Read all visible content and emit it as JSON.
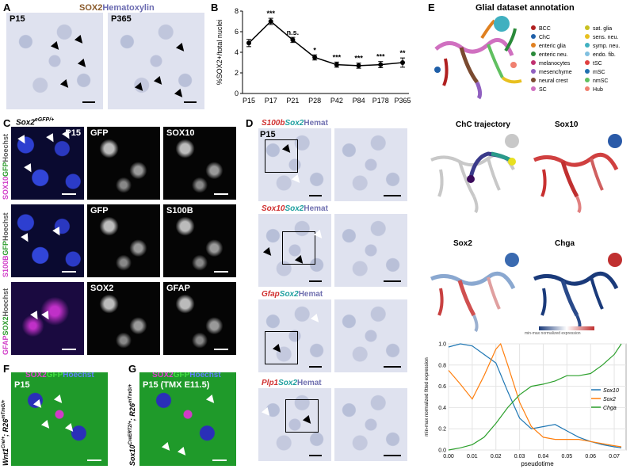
{
  "panelA": {
    "label": "A",
    "stain_sox2": "SOX2",
    "stain_hema": "Hematoxylin",
    "left_age": "P15",
    "right_age": "P365"
  },
  "panelB": {
    "label": "B",
    "ylabel": "%SOX2+/total nuclei",
    "sig": [
      "",
      "***",
      "n.s.",
      "*",
      "***",
      "***",
      "***",
      "**"
    ]
  },
  "chart_data": [
    {
      "type": "line",
      "title": "",
      "xlabel": "",
      "ylabel": "%SOX2+/total nuclei",
      "categories": [
        "P15",
        "P17",
        "P21",
        "P28",
        "P42",
        "P84",
        "P178",
        "P365"
      ],
      "values": [
        4.9,
        7.0,
        5.2,
        3.5,
        2.8,
        2.7,
        2.8,
        3.0
      ],
      "errors": [
        0.35,
        0.3,
        0.25,
        0.25,
        0.25,
        0.25,
        0.3,
        0.45
      ],
      "ylim": [
        0,
        8
      ],
      "yticks": [
        0,
        2,
        4,
        6,
        8
      ]
    },
    {
      "type": "line",
      "title": "",
      "xlabel": "pseudotime",
      "ylabel": "min-max normalized fitted expression",
      "xlim": [
        0,
        0.075
      ],
      "ylim": [
        0,
        1
      ],
      "xticks": [
        "0.00",
        "0.01",
        "0.02",
        "0.03",
        "0.04",
        "0.05",
        "0.06",
        "0.07"
      ],
      "yticks": [
        "0.0",
        "0.2",
        "0.4",
        "0.6",
        "0.8",
        "1.0"
      ],
      "legend_position": "right",
      "series": [
        {
          "name": "Sox10",
          "color": "#1f77b4",
          "x": [
            0.0,
            0.005,
            0.01,
            0.015,
            0.02,
            0.025,
            0.03,
            0.035,
            0.04,
            0.045,
            0.05,
            0.055,
            0.06,
            0.065,
            0.07,
            0.073
          ],
          "y": [
            0.97,
            1.0,
            0.98,
            0.9,
            0.82,
            0.55,
            0.3,
            0.2,
            0.22,
            0.24,
            0.18,
            0.12,
            0.08,
            0.05,
            0.03,
            0.02
          ]
        },
        {
          "name": "Sox2",
          "color": "#ff7f0e",
          "x": [
            0.0,
            0.005,
            0.01,
            0.015,
            0.02,
            0.022,
            0.025,
            0.03,
            0.035,
            0.04,
            0.045,
            0.05,
            0.055,
            0.06,
            0.065,
            0.07,
            0.073
          ],
          "y": [
            0.75,
            0.62,
            0.48,
            0.7,
            0.95,
            1.0,
            0.8,
            0.45,
            0.22,
            0.12,
            0.1,
            0.1,
            0.1,
            0.08,
            0.06,
            0.04,
            0.03
          ]
        },
        {
          "name": "Chga",
          "color": "#2ca02c",
          "x": [
            0.0,
            0.005,
            0.01,
            0.015,
            0.02,
            0.025,
            0.03,
            0.035,
            0.04,
            0.045,
            0.05,
            0.055,
            0.06,
            0.065,
            0.07,
            0.073
          ],
          "y": [
            0.0,
            0.02,
            0.05,
            0.12,
            0.25,
            0.4,
            0.52,
            0.6,
            0.62,
            0.65,
            0.7,
            0.7,
            0.72,
            0.8,
            0.9,
            1.0
          ]
        }
      ]
    }
  ],
  "panelC": {
    "label": "C",
    "genotype": "Sox2",
    "genotype_sup": "eGFP/+",
    "age": "P15",
    "rows": [
      {
        "merge_a": "SOX10",
        "merge_b": "GFP",
        "merge_c": "Hoechst",
        "ch1": "GFP",
        "ch2": "SOX10"
      },
      {
        "merge_a": "S100B",
        "merge_b": "GFP",
        "merge_c": "Hoechst",
        "ch1": "GFP",
        "ch2": "S100B"
      },
      {
        "merge_a": "GFAP",
        "merge_b": "SOX2",
        "merge_c": "Hoechst",
        "ch1": "SOX2",
        "ch2": "GFAP"
      }
    ]
  },
  "panelD": {
    "label": "D",
    "age": "P15",
    "rows": [
      {
        "gene": "S100b",
        "sox2": "Sox2",
        "hemat": "Hemat"
      },
      {
        "gene": "Sox10",
        "sox2": "Sox2",
        "hemat": "Hemat"
      },
      {
        "gene": "Gfap",
        "sox2": "Sox2",
        "hemat": "Hemat"
      },
      {
        "gene": "Plp1",
        "sox2": "Sox2",
        "hemat": "Hemat"
      }
    ]
  },
  "panelE": {
    "label": "E",
    "title": "Glial dataset annotation",
    "legend_left": [
      {
        "name": "BCC",
        "color": "#b02020"
      },
      {
        "name": "ChC",
        "color": "#1f5fa8"
      },
      {
        "name": "enteric glia",
        "color": "#e08020"
      },
      {
        "name": "enteric neu.",
        "color": "#2a8a3a"
      },
      {
        "name": "melanocytes",
        "color": "#c03070"
      },
      {
        "name": "mesenchyme",
        "color": "#9060c0"
      },
      {
        "name": "neural crest",
        "color": "#7a4a30"
      },
      {
        "name": "SC",
        "color": "#d070c0"
      }
    ],
    "legend_right": [
      {
        "name": "sat. glia",
        "color": "#c8c020"
      },
      {
        "name": "sens. neu.",
        "color": "#e8c020"
      },
      {
        "name": "symp. neu.",
        "color": "#40b0c0"
      },
      {
        "name": "endo. fib.",
        "color": "#80c0e0"
      },
      {
        "name": "tSC",
        "color": "#e04040"
      },
      {
        "name": "mSC",
        "color": "#2070b0"
      },
      {
        "name": "nmSC",
        "color": "#60c060"
      },
      {
        "name": "Hub",
        "color": "#f08070"
      }
    ],
    "traj_title": "ChC trajectory",
    "sox10_title": "Sox10",
    "sox2_title": "Sox2",
    "chga_title": "Chga",
    "colorbar_label": "min-max normalized expression"
  },
  "panelF": {
    "label": "F",
    "stain_a": "SOX2",
    "stain_b": "GFP",
    "stain_c": "Hoechst",
    "age": "P15",
    "genotype_a": "Wnt1",
    "genotype_a_sup": "Cre/+",
    "genotype_b": "R26",
    "genotype_b_sup": "mTmG/+"
  },
  "panelG": {
    "label": "G",
    "stain_a": "SOX2",
    "stain_b": "GFP",
    "stain_c": "Hoechst",
    "age": "P15 (TMX E11.5)",
    "genotype_a": "Sox10",
    "genotype_a_sup": "CreERT2/+",
    "genotype_b": "R26",
    "genotype_b_sup": "mTmG/+"
  }
}
